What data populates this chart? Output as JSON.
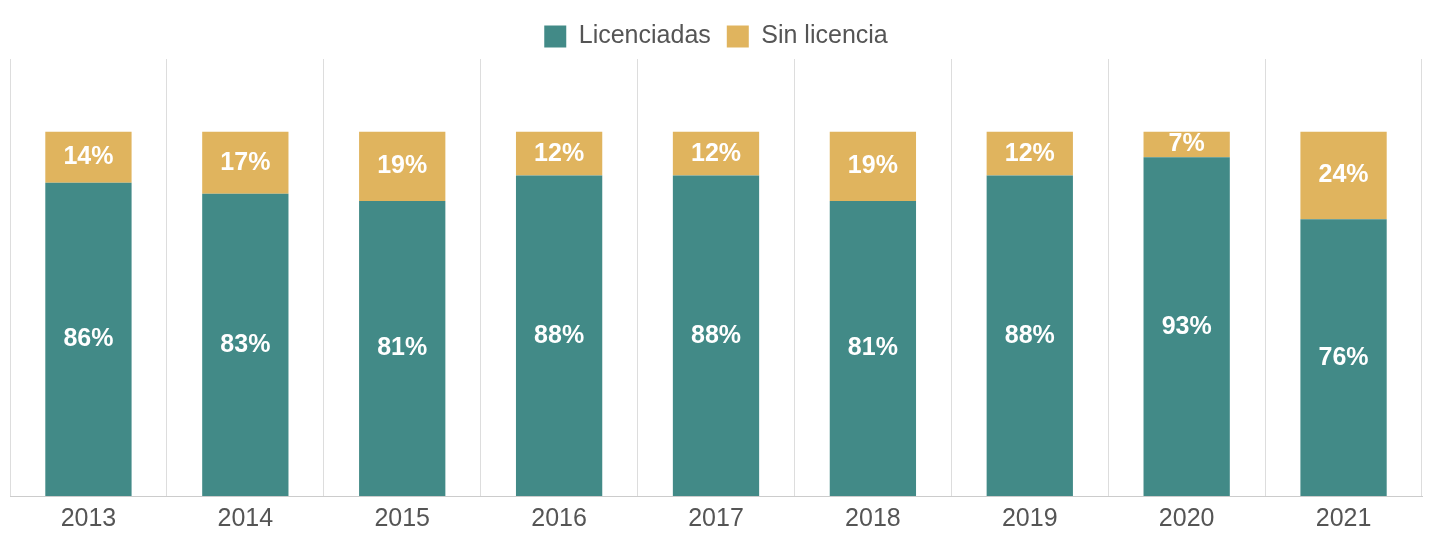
{
  "chart_data": {
    "type": "bar",
    "stacked": true,
    "categories": [
      "2013",
      "2014",
      "2015",
      "2016",
      "2017",
      "2018",
      "2019",
      "2020",
      "2021"
    ],
    "series": [
      {
        "name": "Licenciadas",
        "color": "#428a87",
        "values": [
          86,
          83,
          81,
          88,
          88,
          81,
          88,
          93,
          76
        ],
        "value_labels": [
          "86%",
          "83%",
          "81%",
          "88%",
          "88%",
          "81%",
          "88%",
          "93%",
          "76%"
        ]
      },
      {
        "name": "Sin licencia",
        "color": "#e0b45e",
        "values": [
          14,
          17,
          19,
          12,
          12,
          19,
          12,
          7,
          24
        ],
        "value_labels": [
          "14%",
          "17%",
          "19%",
          "12%",
          "12%",
          "19%",
          "12%",
          "7%",
          "24%"
        ]
      }
    ],
    "grid": "x",
    "legend": "top",
    "tick_labels": "x"
  }
}
